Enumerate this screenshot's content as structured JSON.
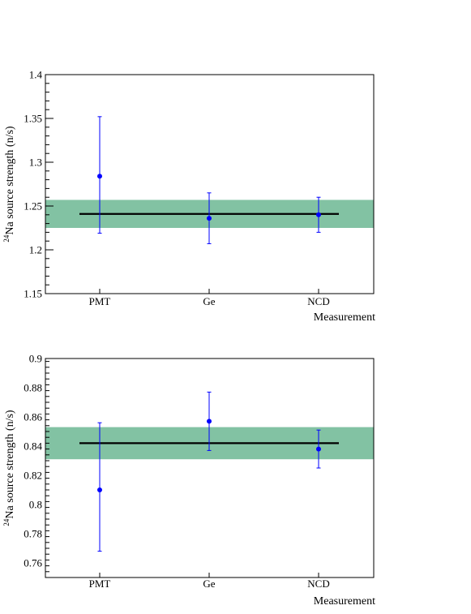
{
  "chart_data": [
    {
      "type": "scatter",
      "ylabel_superscript": "24",
      "ylabel": "Na source strength (n/s)",
      "xlabel": "Measurement",
      "categories": [
        "PMT",
        "Ge",
        "NCD"
      ],
      "ylim": [
        1.15,
        1.4
      ],
      "yticks": [
        1.15,
        1.2,
        1.25,
        1.3,
        1.35,
        1.4
      ],
      "ytick_labels": [
        "1.15",
        "1.2",
        "1.25",
        "1.3",
        "1.35",
        "1.4"
      ],
      "series": [
        {
          "values": [
            1.284,
            1.236,
            1.24
          ],
          "err_low": [
            1.219,
            1.207,
            1.22
          ],
          "err_high": [
            1.352,
            1.265,
            1.26
          ]
        }
      ],
      "fit": {
        "value": 1.241,
        "band": [
          1.225,
          1.257
        ]
      },
      "colors": {
        "points": "#0000ff",
        "band": "#82c2a3",
        "fit_line": "#000000"
      },
      "grid": false
    },
    {
      "type": "scatter",
      "ylabel_superscript": "24",
      "ylabel": "Na source strength (n/s)",
      "xlabel": "Measurement",
      "categories": [
        "PMT",
        "Ge",
        "NCD"
      ],
      "ylim": [
        0.75,
        0.9
      ],
      "yticks": [
        0.76,
        0.78,
        0.8,
        0.82,
        0.84,
        0.86,
        0.88,
        0.9
      ],
      "ytick_labels": [
        "0.76",
        "0.78",
        "0.8",
        "0.82",
        "0.84",
        "0.86",
        "0.88",
        "0.9"
      ],
      "series": [
        {
          "values": [
            0.81,
            0.857,
            0.838
          ],
          "err_low": [
            0.768,
            0.837,
            0.825
          ],
          "err_high": [
            0.856,
            0.877,
            0.851
          ]
        }
      ],
      "fit": {
        "value": 0.842,
        "band": [
          0.831,
          0.853
        ]
      },
      "colors": {
        "points": "#0000ff",
        "band": "#82c2a3",
        "fit_line": "#000000"
      },
      "grid": false
    }
  ]
}
